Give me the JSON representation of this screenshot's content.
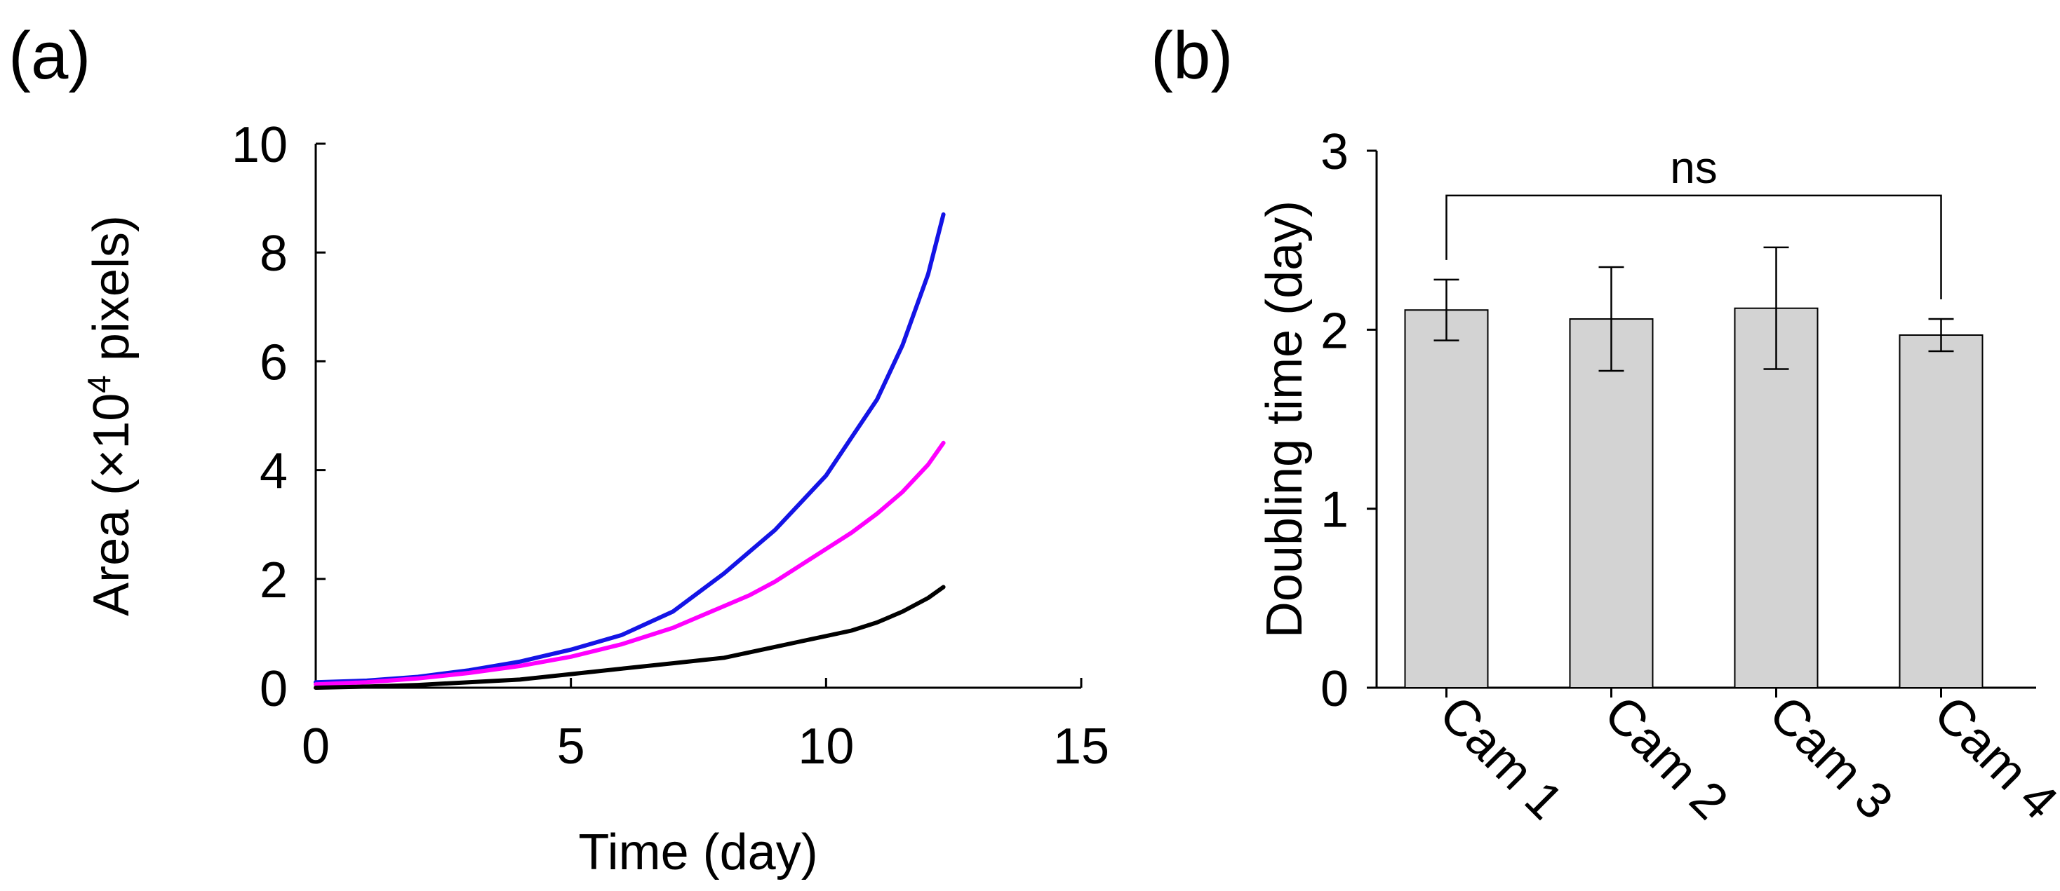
{
  "chart_data": [
    {
      "panel_label": "(a)",
      "type": "line",
      "title": "",
      "xlabel": "Time (day)",
      "ylabel_parts": [
        "Area (×10",
        "4",
        " pixels)"
      ],
      "xlim": [
        0,
        15
      ],
      "ylim": [
        0,
        10
      ],
      "xticks": [
        0,
        5,
        10,
        15
      ],
      "yticks": [
        0,
        2,
        4,
        6,
        8,
        10
      ],
      "grid": false,
      "legend": "none",
      "series": [
        {
          "name": "blue",
          "color": "#1414e6",
          "x": [
            0,
            1,
            2,
            3,
            4,
            5,
            6,
            7,
            7.5,
            8,
            8.5,
            9,
            9.5,
            10,
            10.5,
            11,
            11.5,
            12,
            12.3
          ],
          "y": [
            0.1,
            0.13,
            0.2,
            0.32,
            0.48,
            0.7,
            0.97,
            1.4,
            1.75,
            2.1,
            2.5,
            2.9,
            3.4,
            3.9,
            4.6,
            5.3,
            6.3,
            7.6,
            8.7
          ]
        },
        {
          "name": "magenta",
          "color": "#ff00ff",
          "x": [
            0,
            1,
            2,
            3,
            4,
            5,
            6,
            7,
            8,
            8.5,
            9,
            9.5,
            10,
            10.5,
            11,
            11.5,
            12,
            12.3
          ],
          "y": [
            0.06,
            0.1,
            0.17,
            0.27,
            0.4,
            0.57,
            0.8,
            1.1,
            1.5,
            1.7,
            1.95,
            2.25,
            2.55,
            2.85,
            3.2,
            3.6,
            4.1,
            4.5
          ]
        },
        {
          "name": "black",
          "color": "#000000",
          "x": [
            0,
            1,
            2,
            3,
            4,
            5,
            6,
            7,
            8,
            8.5,
            9,
            9.5,
            10,
            10.5,
            11,
            11.5,
            12,
            12.3
          ],
          "y": [
            0,
            0.02,
            0.05,
            0.1,
            0.15,
            0.25,
            0.35,
            0.45,
            0.55,
            0.65,
            0.75,
            0.85,
            0.95,
            1.05,
            1.2,
            1.4,
            1.65,
            1.85
          ]
        }
      ]
    },
    {
      "panel_label": "(b)",
      "type": "bar",
      "title": "",
      "xlabel": "",
      "ylabel": "Doubling time (day)",
      "ylim": [
        0,
        3
      ],
      "yticks": [
        0,
        1,
        2,
        3
      ],
      "grid": false,
      "legend": "none",
      "bar_color": "#d3d3d3",
      "categories": [
        "Cam 1",
        "Cam 2",
        "Cam 3",
        "Cam 4"
      ],
      "values": [
        2.11,
        2.06,
        2.12,
        1.97
      ],
      "error": [
        0.17,
        0.29,
        0.34,
        0.09
      ],
      "significance": {
        "label": "ns",
        "from_category": "Cam 1",
        "to_category": "Cam 4",
        "bracket_y": 2.75
      }
    }
  ]
}
